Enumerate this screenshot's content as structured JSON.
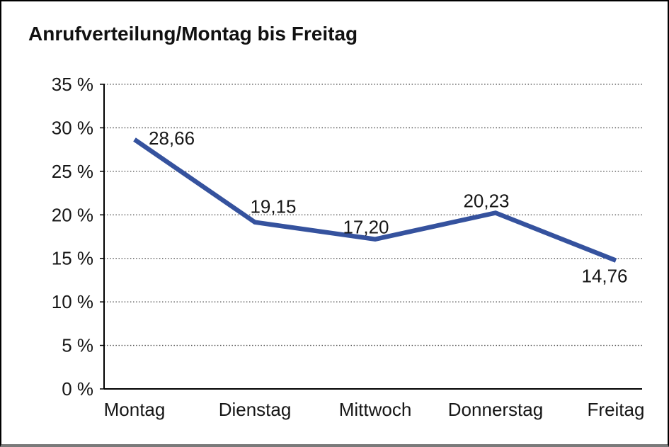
{
  "title": "Anrufverteilung/Montag bis Freitag",
  "chart_data": {
    "type": "line",
    "title": "Anrufverteilung/Montag bis Freitag",
    "categories": [
      "Montag",
      "Dienstag",
      "Mittwoch",
      "Donnerstag",
      "Freitag"
    ],
    "series": [
      {
        "name": "Anrufverteilung",
        "values": [
          28.66,
          19.15,
          17.2,
          20.23,
          14.76
        ],
        "value_labels": [
          "28,66",
          "19,15",
          "17,20",
          "20,23",
          "14,76"
        ]
      }
    ],
    "xlabel": "",
    "ylabel": "",
    "ylim": [
      0,
      35
    ],
    "y_tick_values": [
      0,
      5,
      10,
      15,
      20,
      25,
      30,
      35
    ],
    "y_tick_labels": [
      "0 %",
      "5 %",
      "10 %",
      "15 %",
      "20 %",
      "25 %",
      "30 %",
      "35 %"
    ],
    "grid": "horizontal-dotted",
    "legend_position": "none",
    "line_color": "#35529E",
    "axis_color": "#000000",
    "gridline_color": "#4a4a4a",
    "text_color": "#161616"
  }
}
